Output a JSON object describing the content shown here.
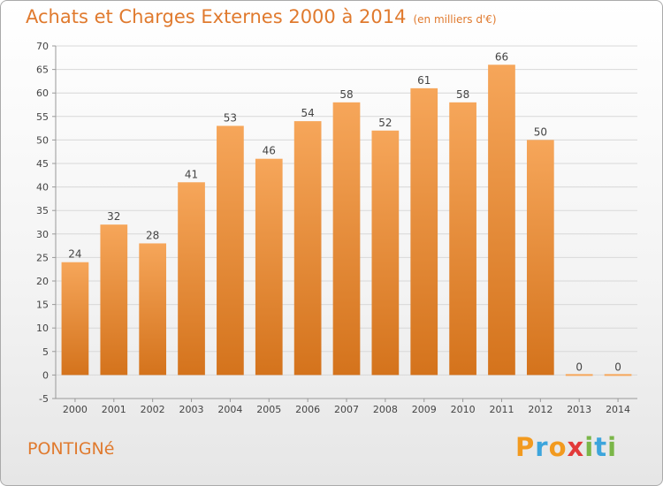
{
  "header": {
    "title": "Achats et Charges Externes 2000 à 2014",
    "subtitle": "(en milliers d'€)"
  },
  "footer": {
    "commune": "PONTIGNé",
    "logo": {
      "letters": [
        "P",
        "r",
        "o",
        "x",
        "i",
        "t",
        "i"
      ],
      "colors": [
        "#f29a1f",
        "#3da5dc",
        "#f29a1f",
        "#e23a3a",
        "#7ab648",
        "#3da5dc",
        "#7ab648"
      ]
    }
  },
  "colors": {
    "accent": "#e07a2e",
    "bar_top": "#f6a65a",
    "bar_bottom": "#d4731c"
  },
  "chart_data": {
    "type": "bar",
    "categories": [
      "2000",
      "2001",
      "2002",
      "2003",
      "2004",
      "2005",
      "2006",
      "2007",
      "2008",
      "2009",
      "2010",
      "2011",
      "2012",
      "2013",
      "2014"
    ],
    "values": [
      24,
      32,
      28,
      41,
      53,
      46,
      54,
      58,
      52,
      61,
      58,
      66,
      50,
      0,
      0
    ],
    "ylim": [
      -5,
      70
    ],
    "yticks": [
      -5,
      0,
      5,
      10,
      15,
      20,
      25,
      30,
      35,
      40,
      45,
      50,
      55,
      60,
      65,
      70
    ],
    "grid": true,
    "legend": "none"
  }
}
